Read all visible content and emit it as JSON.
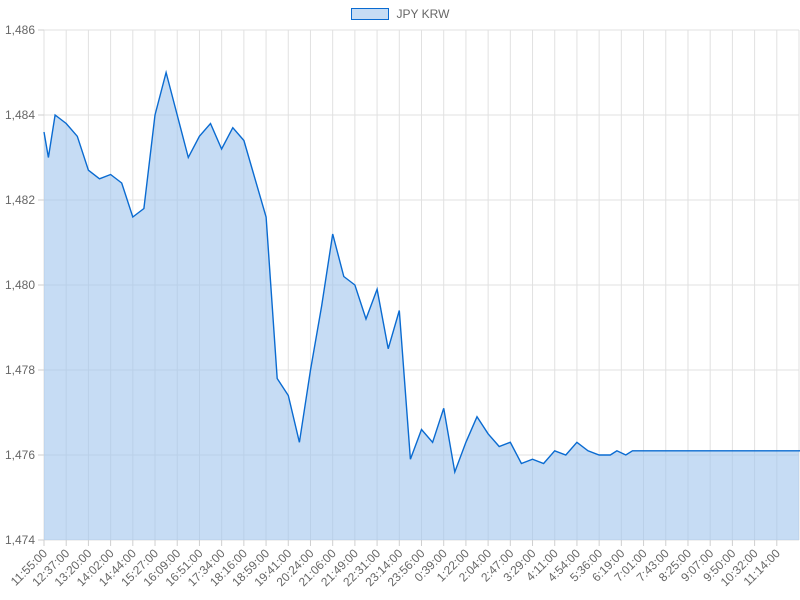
{
  "chart_data": {
    "type": "area",
    "title": "",
    "xlabel": "",
    "ylabel": "",
    "ylim": [
      1474,
      1486
    ],
    "yticks": [
      1474,
      1476,
      1478,
      1480,
      1482,
      1484,
      1486
    ],
    "ytick_labels": [
      "1,474",
      "1,476",
      "1,478",
      "1,480",
      "1,482",
      "1,484",
      "1,486"
    ],
    "xtick_labels": [
      "11:55:00",
      "12:37:00",
      "13:20:00",
      "14:02:00",
      "14:44:00",
      "15:27:00",
      "16:09:00",
      "16:51:00",
      "17:34:00",
      "18:16:00",
      "18:59:00",
      "19:41:00",
      "20:24:00",
      "21:06:00",
      "21:49:00",
      "22:31:00",
      "23:14:00",
      "23:56:00",
      "0:39:00",
      "1:22:00",
      "2:04:00",
      "2:47:00",
      "3:29:00",
      "4:11:00",
      "4:54:00",
      "5:36:00",
      "6:19:00",
      "7:01:00",
      "7:43:00",
      "8:25:00",
      "9:07:00",
      "9:50:00",
      "10:32:00",
      "11:14:00"
    ],
    "grid": true,
    "legend_position": "top-center",
    "line_color": "#0a6bd1",
    "fill_color": "#a0c4ec",
    "series": [
      {
        "name": "JPY KRW",
        "x": [
          0,
          0.2,
          0.5,
          1,
          1.5,
          2,
          2.5,
          3,
          3.5,
          4,
          4.5,
          5,
          5.5,
          6,
          6.5,
          7,
          7.5,
          8,
          8.5,
          9,
          9.5,
          10,
          10.5,
          11,
          11.5,
          12,
          12.5,
          13,
          13.5,
          14,
          14.5,
          15,
          15.5,
          16,
          16.5,
          17,
          17.5,
          18,
          18.5,
          19,
          19.5,
          20,
          20.5,
          21,
          21.5,
          22,
          22.5,
          23,
          23.5,
          24,
          24.5,
          25,
          25.5,
          25.8,
          26.2,
          26.5,
          27,
          28,
          29,
          30,
          31,
          32,
          33,
          34,
          35
        ],
        "y": [
          1483.6,
          1483.0,
          1484.0,
          1483.8,
          1483.5,
          1482.7,
          1482.5,
          1482.6,
          1482.4,
          1481.6,
          1481.8,
          1484.0,
          1485.0,
          1484.0,
          1483.0,
          1483.5,
          1483.8,
          1483.2,
          1483.7,
          1483.4,
          1482.5,
          1481.6,
          1477.8,
          1477.4,
          1476.3,
          1478.0,
          1479.5,
          1481.2,
          1480.2,
          1480.0,
          1479.2,
          1479.9,
          1478.5,
          1479.4,
          1475.9,
          1476.6,
          1476.3,
          1477.1,
          1475.6,
          1476.3,
          1476.9,
          1476.5,
          1476.2,
          1476.3,
          1475.8,
          1475.9,
          1475.8,
          1476.1,
          1476.0,
          1476.3,
          1476.1,
          1476.0,
          1476.0,
          1476.1,
          1476.0,
          1476.1,
          1476.1,
          1476.1,
          1476.1,
          1476.1,
          1476.1,
          1476.1,
          1476.1,
          1476.1,
          1476.1
        ]
      }
    ]
  }
}
